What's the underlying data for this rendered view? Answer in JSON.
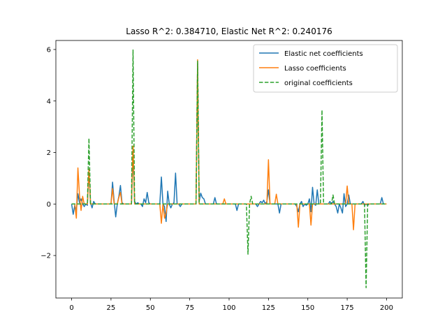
{
  "chart_data": {
    "type": "line",
    "title": "Lasso R^2: 0.384710, Elastic Net R^2: 0.240176",
    "xlabel": "",
    "ylabel": "",
    "xlim": [
      -10,
      210
    ],
    "ylim": [
      -3.65,
      6.35
    ],
    "xticks": [
      0,
      25,
      50,
      75,
      100,
      125,
      150,
      175,
      200
    ],
    "yticks": [
      -2,
      0,
      2,
      4,
      6
    ],
    "xtick_labels": [
      "0",
      "25",
      "50",
      "75",
      "100",
      "125",
      "150",
      "175",
      "200"
    ],
    "ytick_labels": [
      "−2",
      "0",
      "2",
      "4",
      "6"
    ],
    "grid": false,
    "legend_position": "top-right",
    "series": [
      {
        "name": "Elastic net coefficients",
        "color": "#1f77b4",
        "style": "solid",
        "points": [
          [
            0,
            0
          ],
          [
            1,
            -0.4
          ],
          [
            2,
            -0.05
          ],
          [
            3,
            -0.25
          ],
          [
            4,
            0.4
          ],
          [
            5,
            0.05
          ],
          [
            6,
            0.2
          ],
          [
            7,
            0
          ],
          [
            8,
            -0.1
          ],
          [
            9,
            0
          ],
          [
            10,
            -0.05
          ],
          [
            11,
            1.3
          ],
          [
            12,
            0.05
          ],
          [
            13,
            -0.15
          ],
          [
            14,
            0.1
          ],
          [
            15,
            0
          ],
          [
            25,
            0
          ],
          [
            26,
            0.85
          ],
          [
            27,
            0.1
          ],
          [
            28,
            -0.5
          ],
          [
            29,
            0
          ],
          [
            30,
            0.3
          ],
          [
            31,
            0.72
          ],
          [
            32,
            0.05
          ],
          [
            33,
            0
          ],
          [
            38,
            0
          ],
          [
            39,
            2.0
          ],
          [
            40,
            0.1
          ],
          [
            41,
            0
          ],
          [
            42,
            0.05
          ],
          [
            43,
            0
          ],
          [
            44,
            0
          ],
          [
            45,
            -0.1
          ],
          [
            46,
            0.2
          ],
          [
            47,
            0.05
          ],
          [
            48,
            0.45
          ],
          [
            49,
            0.05
          ],
          [
            50,
            0
          ],
          [
            56,
            0
          ],
          [
            57,
            1.05
          ],
          [
            58,
            0
          ],
          [
            59,
            -0.1
          ],
          [
            60,
            -0.68
          ],
          [
            61,
            0.5
          ],
          [
            62,
            0
          ],
          [
            63,
            -0.15
          ],
          [
            64,
            0
          ],
          [
            65,
            0.05
          ],
          [
            66,
            1.2
          ],
          [
            67,
            0
          ],
          [
            68,
            0
          ],
          [
            69,
            -0.1
          ],
          [
            70,
            0
          ],
          [
            79,
            0
          ],
          [
            80,
            5.45
          ],
          [
            81,
            0.1
          ],
          [
            82,
            0.42
          ],
          [
            83,
            0.25
          ],
          [
            84,
            0.2
          ],
          [
            85,
            0
          ],
          [
            90,
            0
          ],
          [
            91,
            0.25
          ],
          [
            92,
            0
          ],
          [
            104,
            0
          ],
          [
            105,
            -0.25
          ],
          [
            106,
            0
          ],
          [
            117,
            0
          ],
          [
            118,
            -0.1
          ],
          [
            119,
            0
          ],
          [
            120,
            0.1
          ],
          [
            121,
            0.05
          ],
          [
            122,
            0.15
          ],
          [
            123,
            0
          ],
          [
            124,
            0.1
          ],
          [
            125,
            0.55
          ],
          [
            126,
            0
          ],
          [
            131,
            0
          ],
          [
            132,
            -0.35
          ],
          [
            133,
            0
          ],
          [
            142,
            0
          ],
          [
            143,
            -0.1
          ],
          [
            144,
            -0.3
          ],
          [
            145,
            0
          ],
          [
            146,
            0.1
          ],
          [
            147,
            -0.1
          ],
          [
            148,
            0
          ],
          [
            149,
            -0.05
          ],
          [
            150,
            0
          ],
          [
            151,
            0.2
          ],
          [
            152,
            -0.3
          ],
          [
            153,
            0.65
          ],
          [
            154,
            0
          ],
          [
            155,
            -0.05
          ],
          [
            156,
            0.55
          ],
          [
            157,
            0
          ],
          [
            163,
            0
          ],
          [
            164,
            0.1
          ],
          [
            165,
            0
          ],
          [
            166,
            0.1
          ],
          [
            167,
            0
          ],
          [
            168,
            -0.1
          ],
          [
            169,
            -0.35
          ],
          [
            170,
            0
          ],
          [
            171,
            -0.15
          ],
          [
            172,
            -0.35
          ],
          [
            173,
            0.4
          ],
          [
            174,
            -0.1
          ],
          [
            175,
            0
          ],
          [
            176,
            0.35
          ],
          [
            177,
            0
          ],
          [
            184,
            0
          ],
          [
            185,
            0.1
          ],
          [
            186,
            -0.05
          ],
          [
            187,
            0
          ],
          [
            188,
            -0.05
          ],
          [
            189,
            0
          ],
          [
            196,
            0
          ],
          [
            197,
            0.25
          ],
          [
            198,
            0
          ]
        ]
      },
      {
        "name": "Lasso coefficients",
        "color": "#ff7f0e",
        "style": "solid",
        "points": [
          [
            0,
            0
          ],
          [
            2,
            0
          ],
          [
            3,
            -0.55
          ],
          [
            4,
            1.4
          ],
          [
            5,
            0.35
          ],
          [
            6,
            -0.25
          ],
          [
            7,
            0.3
          ],
          [
            8,
            0
          ],
          [
            10,
            0
          ],
          [
            11,
            1.35
          ],
          [
            12,
            0
          ],
          [
            25,
            0
          ],
          [
            26,
            0.6
          ],
          [
            27,
            0
          ],
          [
            29,
            0
          ],
          [
            30,
            0.25
          ],
          [
            31,
            0.45
          ],
          [
            32,
            0
          ],
          [
            38,
            0
          ],
          [
            39,
            2.25
          ],
          [
            40,
            0
          ],
          [
            56,
            0
          ],
          [
            57,
            -0.75
          ],
          [
            58,
            0
          ],
          [
            59,
            -0.55
          ],
          [
            60,
            -0.35
          ],
          [
            61,
            0
          ],
          [
            79,
            0
          ],
          [
            80,
            5.6
          ],
          [
            81,
            0
          ],
          [
            96,
            0
          ],
          [
            97,
            0.2
          ],
          [
            98,
            0
          ],
          [
            124,
            0
          ],
          [
            125,
            1.72
          ],
          [
            126,
            0
          ],
          [
            129,
            0
          ],
          [
            130,
            0.38
          ],
          [
            131,
            0
          ],
          [
            143,
            0
          ],
          [
            144,
            -0.9
          ],
          [
            145,
            0
          ],
          [
            151,
            0
          ],
          [
            152,
            -0.82
          ],
          [
            153,
            0
          ],
          [
            174,
            0
          ],
          [
            175,
            0.7
          ],
          [
            176,
            0
          ],
          [
            178,
            0
          ],
          [
            179,
            -1.0
          ],
          [
            180,
            0
          ],
          [
            200,
            0
          ]
        ]
      },
      {
        "name": "original coefficients",
        "color": "#2ca02c",
        "style": "dashed",
        "points": [
          [
            0,
            0
          ],
          [
            10,
            0
          ],
          [
            11,
            2.55
          ],
          [
            12,
            0
          ],
          [
            38,
            0
          ],
          [
            39,
            5.98
          ],
          [
            40,
            0
          ],
          [
            79,
            0
          ],
          [
            80,
            5.55
          ],
          [
            81,
            0
          ],
          [
            111,
            0
          ],
          [
            112,
            -1.95
          ],
          [
            113,
            0
          ],
          [
            114,
            0.3
          ],
          [
            115,
            0
          ],
          [
            158,
            0
          ],
          [
            159,
            3.65
          ],
          [
            160,
            0
          ],
          [
            165,
            0
          ],
          [
            166,
            0.35
          ],
          [
            167,
            0
          ],
          [
            186,
            0
          ],
          [
            187,
            -3.25
          ],
          [
            188,
            0
          ],
          [
            200,
            0
          ]
        ]
      }
    ]
  }
}
